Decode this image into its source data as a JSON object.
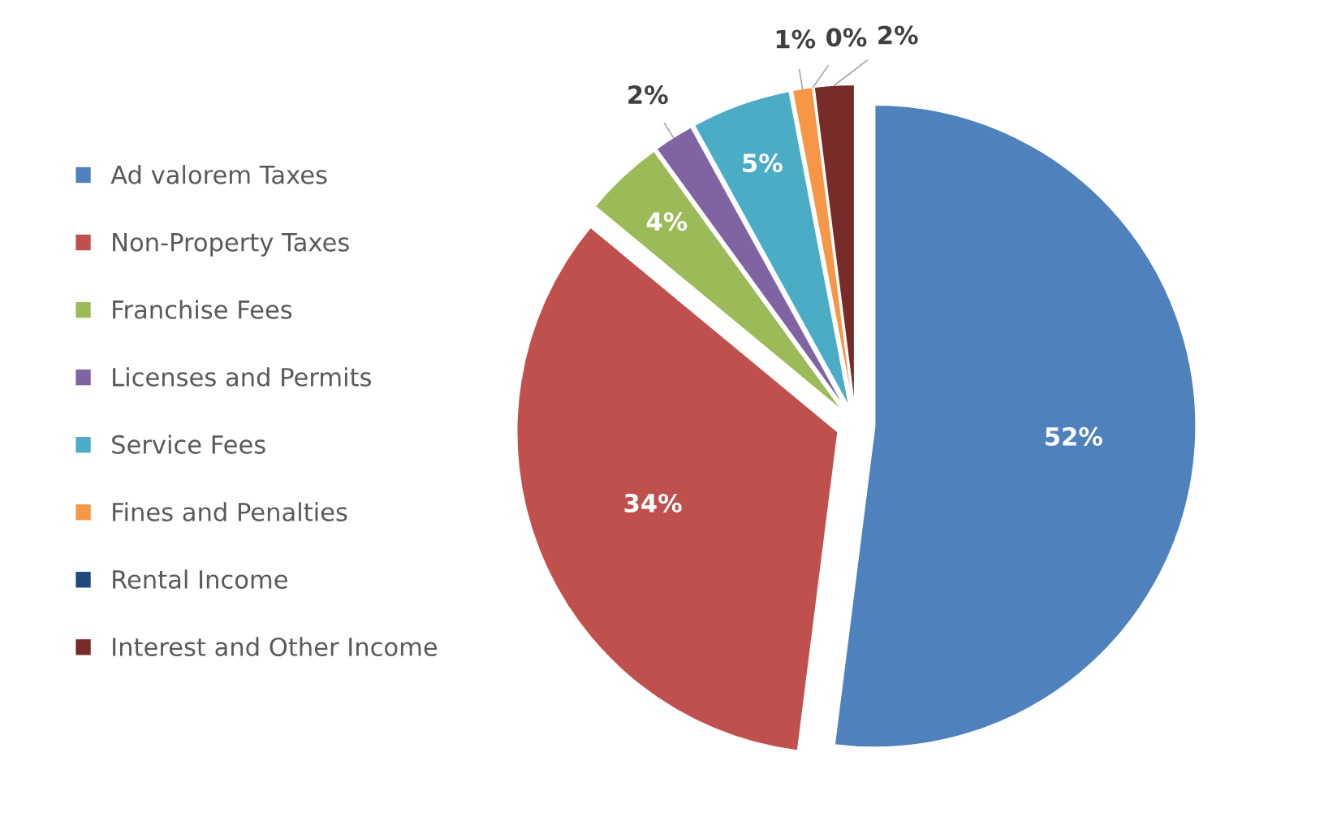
{
  "chart_data": {
    "type": "pie",
    "categories": [
      "Ad valorem Taxes",
      "Non-Property Taxes",
      "Franchise Fees",
      "Licenses and Permits",
      "Service Fees",
      "Fines and Penalties",
      "Rental Income",
      "Interest and Other Income"
    ],
    "values": [
      52,
      34,
      4,
      2,
      5,
      1,
      0,
      2
    ],
    "colors": [
      "#4f81bd",
      "#c0504d",
      "#9bbb59",
      "#8064a2",
      "#4bacc6",
      "#f79646",
      "#1f497d",
      "#772c2a"
    ],
    "value_labels": [
      "52%",
      "34%",
      "4%",
      "2%",
      "5%",
      "1%",
      "0%",
      "2%"
    ],
    "legend": "left"
  }
}
